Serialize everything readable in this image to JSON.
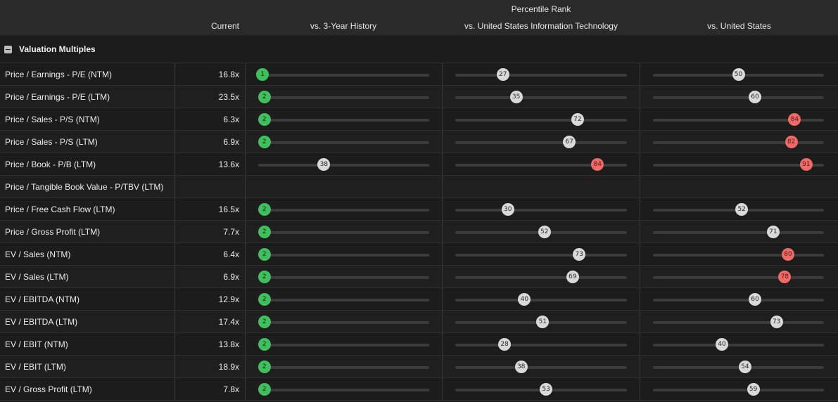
{
  "header": {
    "group_label": "Percentile Rank",
    "col_current": "Current",
    "col_history": "vs. 3-Year History",
    "col_sector": "vs. United States Information Technology",
    "col_country": "vs. United States"
  },
  "section": {
    "title": "Valuation Multiples"
  },
  "colors": {
    "green": "#3ec15b",
    "gray": "#d9d9d9",
    "red": "#ee6a67"
  },
  "rows": [
    {
      "label": "Price / Earnings - P/E (NTM)",
      "current": "16.8x",
      "history": 1,
      "sector": 27,
      "country": 50
    },
    {
      "label": "Price / Earnings - P/E (LTM)",
      "current": "23.5x",
      "history": 2,
      "sector": 35,
      "country": 60
    },
    {
      "label": "Price / Sales - P/S (NTM)",
      "current": "6.3x",
      "history": 2,
      "sector": 72,
      "country": 84
    },
    {
      "label": "Price / Sales - P/S (LTM)",
      "current": "6.9x",
      "history": 2,
      "sector": 67,
      "country": 82
    },
    {
      "label": "Price / Book - P/B (LTM)",
      "current": "13.6x",
      "history": 38,
      "sector": 84,
      "country": 91
    },
    {
      "label": "Price / Tangible Book Value - P/TBV (LTM)",
      "current": "",
      "history": null,
      "sector": null,
      "country": null
    },
    {
      "label": "Price / Free Cash Flow (LTM)",
      "current": "16.5x",
      "history": 2,
      "sector": 30,
      "country": 52
    },
    {
      "label": "Price / Gross Profit (LTM)",
      "current": "7.7x",
      "history": 2,
      "sector": 52,
      "country": 71
    },
    {
      "label": "EV / Sales (NTM)",
      "current": "6.4x",
      "history": 2,
      "sector": 73,
      "country": 80
    },
    {
      "label": "EV / Sales (LTM)",
      "current": "6.9x",
      "history": 2,
      "sector": 69,
      "country": 78
    },
    {
      "label": "EV / EBITDA (NTM)",
      "current": "12.9x",
      "history": 2,
      "sector": 40,
      "country": 60
    },
    {
      "label": "EV / EBITDA (LTM)",
      "current": "17.4x",
      "history": 2,
      "sector": 51,
      "country": 73
    },
    {
      "label": "EV / EBIT (NTM)",
      "current": "13.8x",
      "history": 2,
      "sector": 28,
      "country": 40
    },
    {
      "label": "EV / EBIT (LTM)",
      "current": "18.9x",
      "history": 2,
      "sector": 38,
      "country": 54
    },
    {
      "label": "EV / Gross Profit (LTM)",
      "current": "7.8x",
      "history": 2,
      "sector": 53,
      "country": 59
    }
  ]
}
